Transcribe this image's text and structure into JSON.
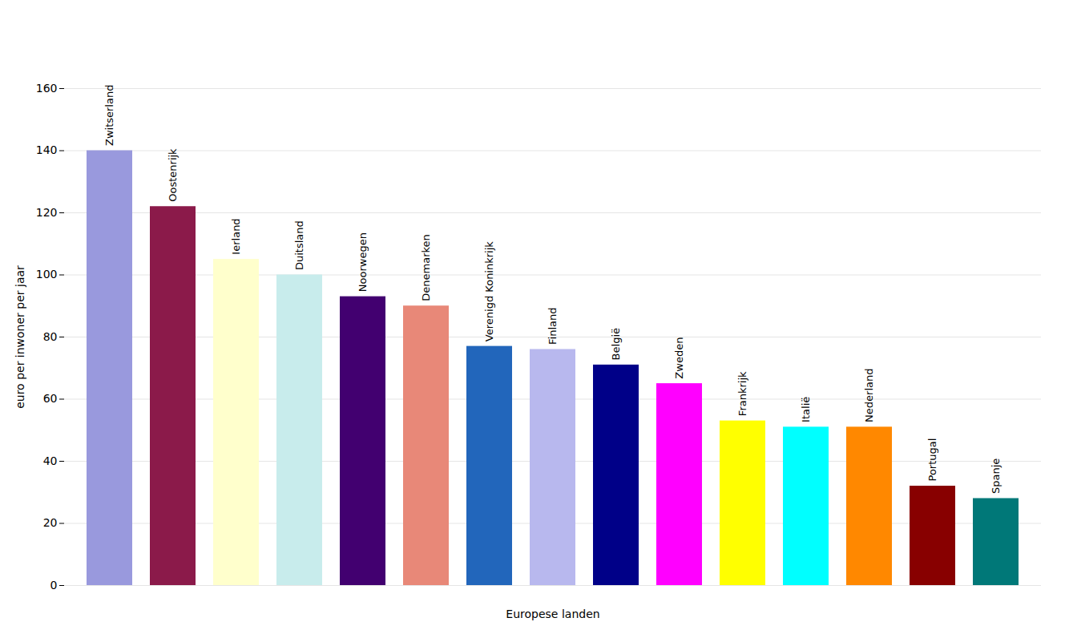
{
  "chart_data": {
    "type": "bar",
    "categories": [
      "Zwitserland",
      "Oostenrijk",
      "Ierland",
      "Duitsland",
      "Noorwegen",
      "Denemarken",
      "Verenigd Koninkrijk",
      "Finland",
      "België",
      "Zweden",
      "Frankrijk",
      "Italië",
      "Nederland",
      "Portugal",
      "Spanje"
    ],
    "values": [
      140,
      122,
      105,
      100,
      93,
      90,
      77,
      76,
      71,
      65,
      53,
      51,
      51,
      32,
      28
    ],
    "colors": [
      "#9999dd",
      "#8b1a4a",
      "#ffffcc",
      "#c8ecec",
      "#420070",
      "#e88878",
      "#2266bb",
      "#b8b8ee",
      "#000088",
      "#ff00ff",
      "#ffff00",
      "#00ffff",
      "#ff8800",
      "#880000",
      "#007878"
    ],
    "xlabel": "Europese landen",
    "ylabel": "euro per inwoner per jaar",
    "ylim": [
      0,
      160
    ],
    "yticks": [
      0,
      20,
      40,
      60,
      80,
      100,
      120,
      140,
      160
    ],
    "grid": true,
    "tick_labels": "y"
  }
}
